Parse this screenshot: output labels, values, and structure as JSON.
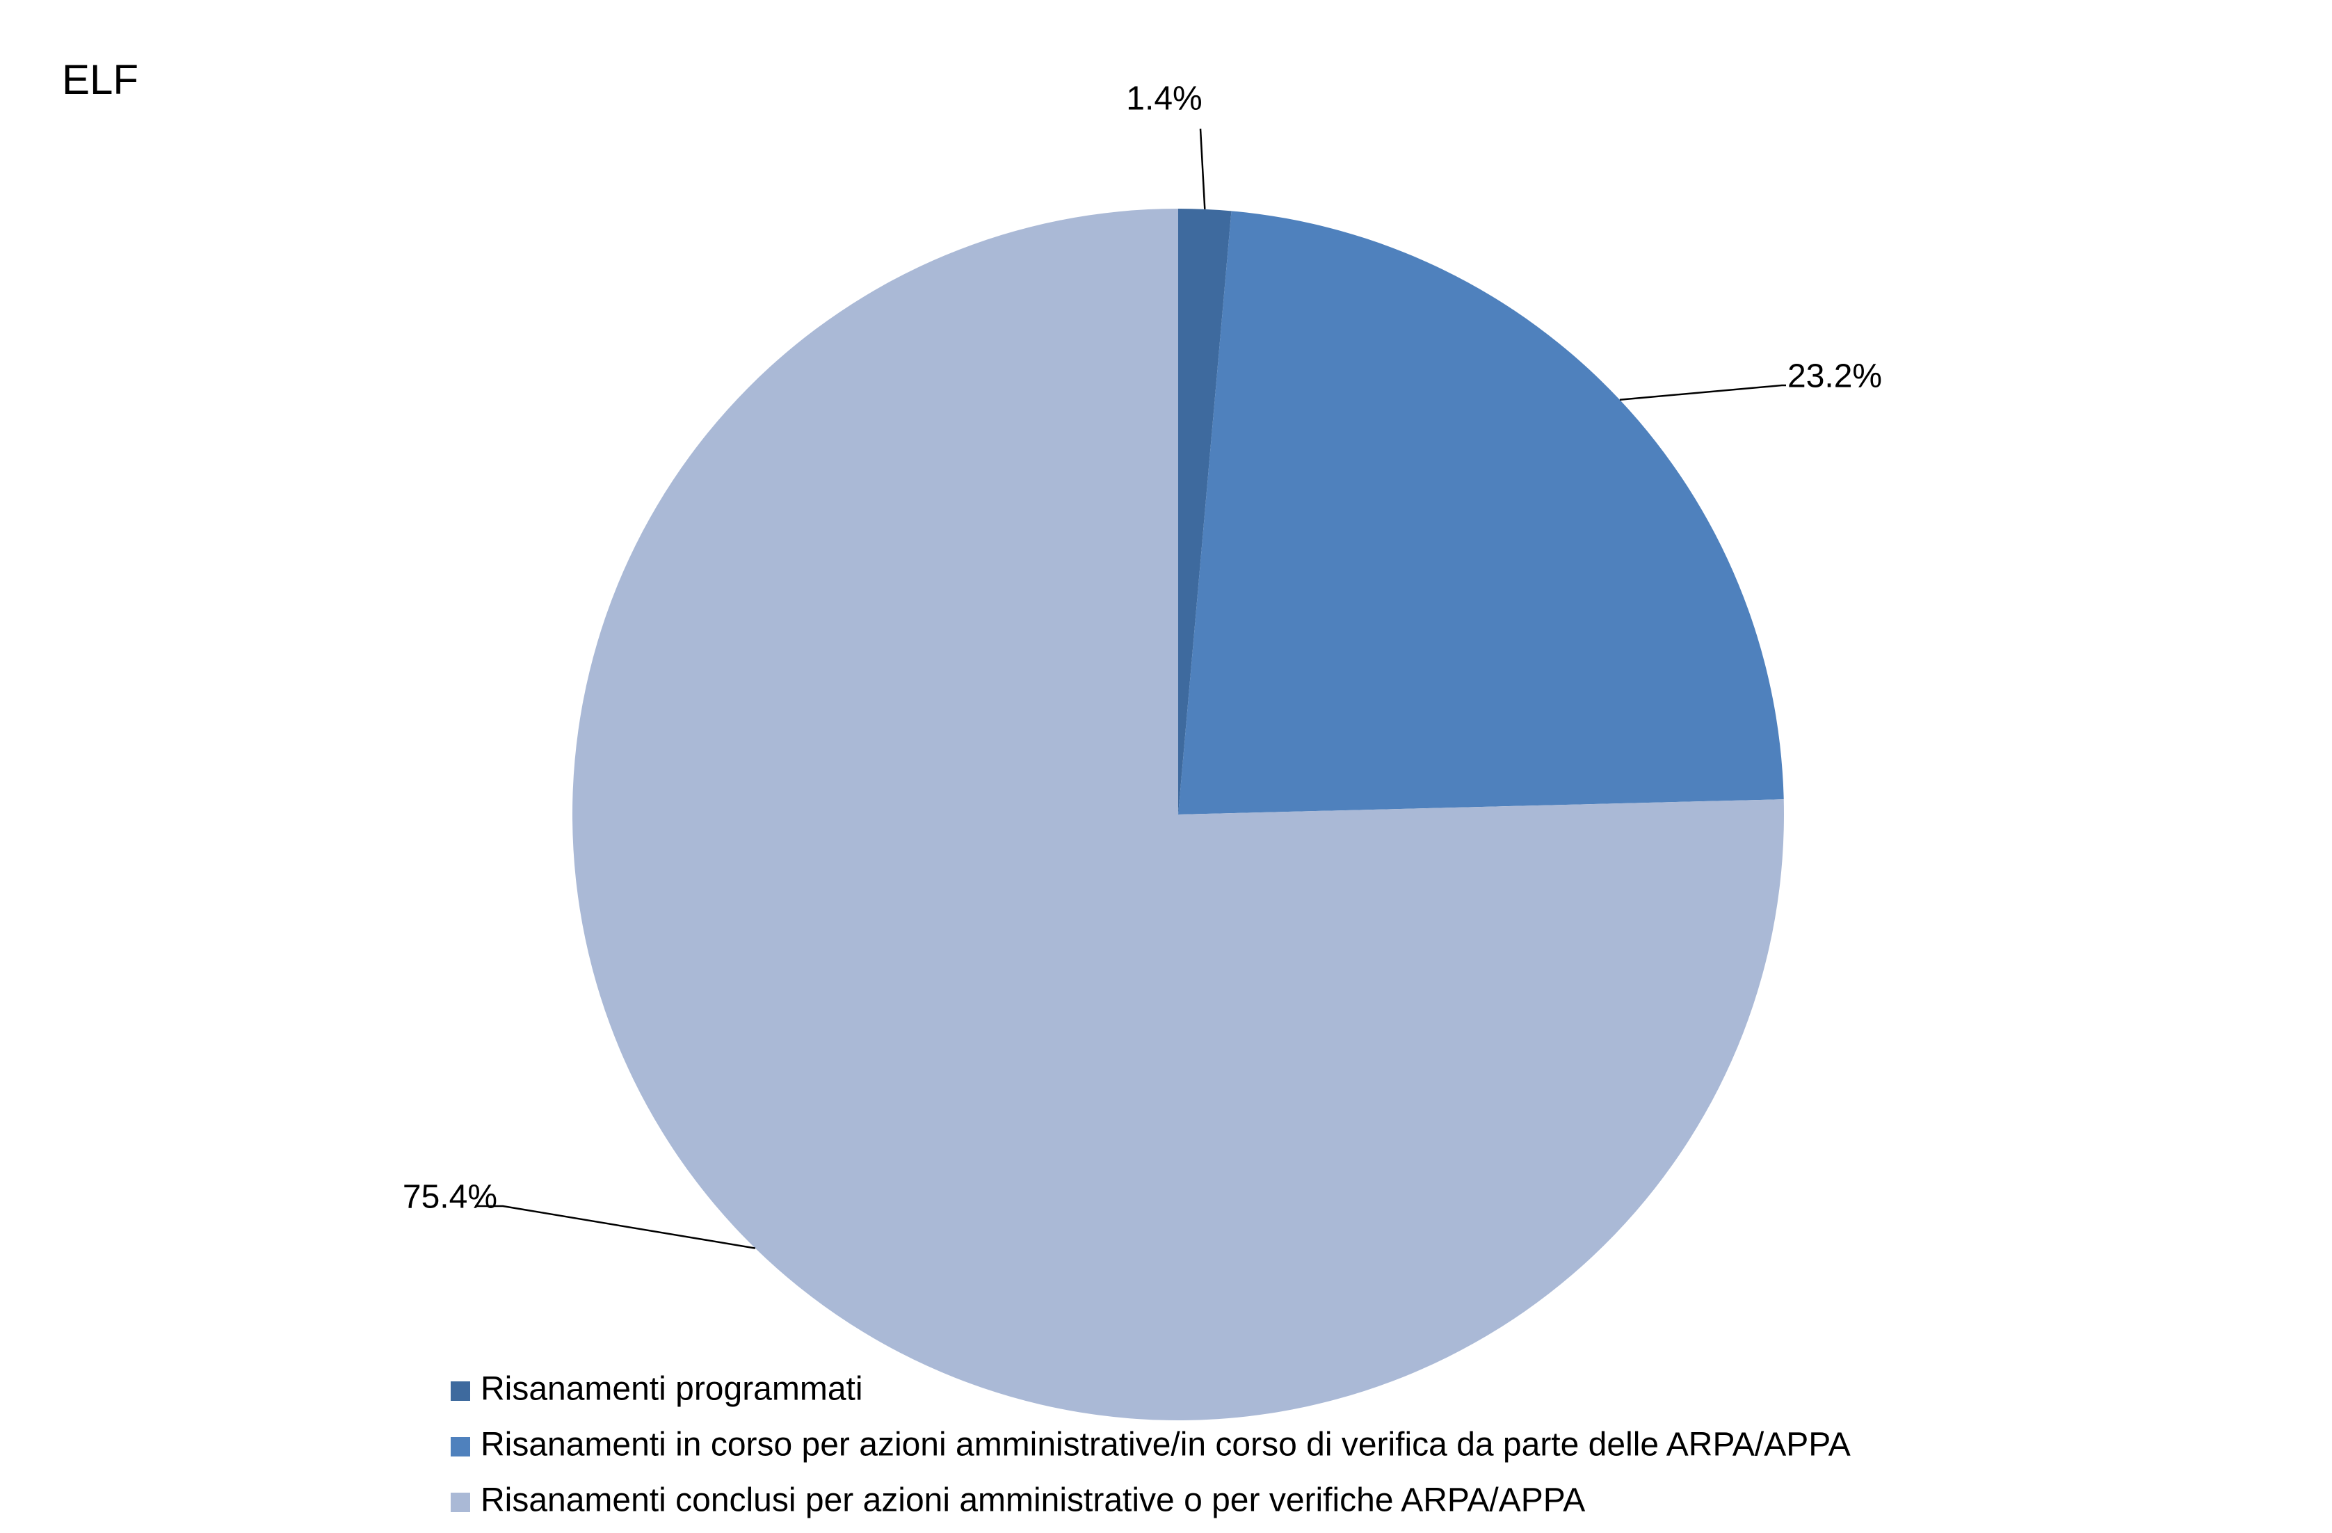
{
  "chart_data": {
    "type": "pie",
    "title": "ELF",
    "categories": [
      "Risanamenti programmati",
      "Risanamenti in corso per azioni amministrative/in corso di verifica da parte delle ARPA/APPA",
      "Risanamenti conclusi per azioni amministrative o per verifiche ARPA/APPA"
    ],
    "values": [
      1.4,
      23.2,
      75.4
    ],
    "value_labels": [
      "1.4%",
      "23.2%",
      "75.4%"
    ],
    "colors": [
      "#3e6a9e",
      "#4f81bd",
      "#aab9d6"
    ],
    "legend": "bottom"
  }
}
